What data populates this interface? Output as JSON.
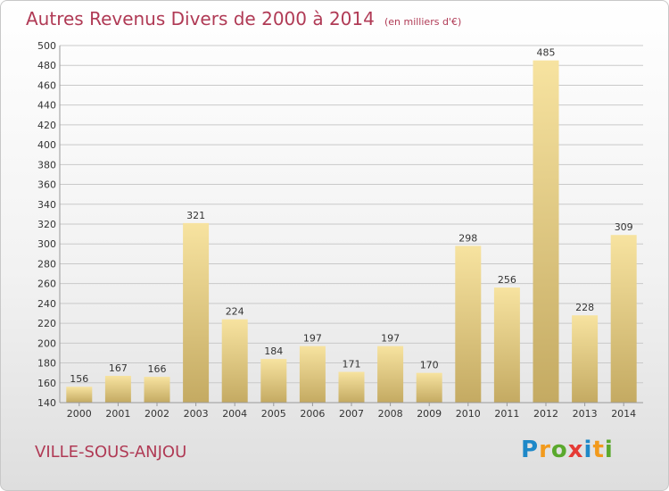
{
  "title": "Autres Revenus Divers de 2000 à 2014",
  "subtitle": "(en milliers d'€)",
  "place": "VILLE-SOUS-ANJOU",
  "brand": {
    "letters": [
      "P",
      "r",
      "o",
      "x",
      "i",
      "t",
      "i"
    ],
    "colors": [
      "#1e88c8",
      "#f29a1c",
      "#5aa92d",
      "#e53a35",
      "#1e88c8",
      "#f29a1c",
      "#5aa92d"
    ]
  },
  "colors": {
    "bar_light": "#f7e3a0",
    "bar_dark": "#c4aa62",
    "grid": "#c9c9c9",
    "text": "#333333",
    "accent": "#b03a55"
  },
  "chart_data": {
    "type": "bar",
    "categories": [
      "2000",
      "2001",
      "2002",
      "2003",
      "2004",
      "2005",
      "2006",
      "2007",
      "2008",
      "2009",
      "2010",
      "2011",
      "2012",
      "2013",
      "2014"
    ],
    "values": [
      156,
      167,
      166,
      321,
      224,
      184,
      197,
      171,
      197,
      170,
      298,
      256,
      485,
      228,
      309
    ],
    "ylim": [
      140,
      500
    ],
    "yticks": [
      140,
      160,
      180,
      200,
      220,
      240,
      260,
      280,
      300,
      320,
      340,
      360,
      380,
      400,
      420,
      440,
      460,
      480,
      500
    ],
    "grid": true,
    "xlabel": "",
    "ylabel": ""
  }
}
